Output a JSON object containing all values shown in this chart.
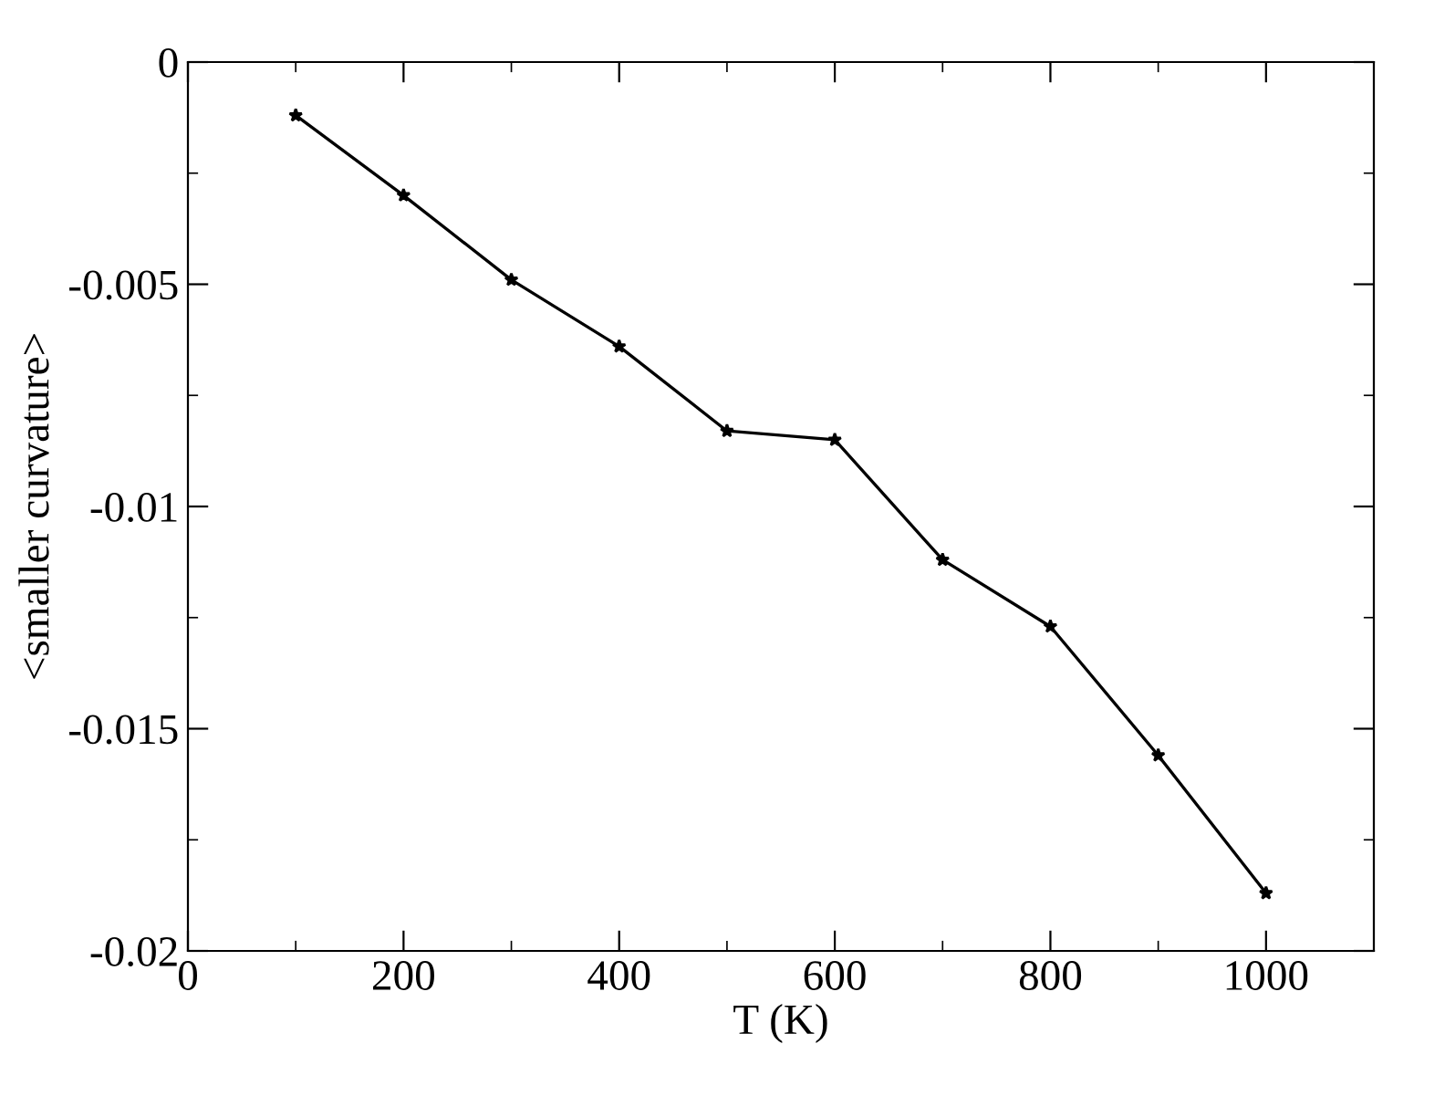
{
  "chart_data": {
    "type": "line",
    "xlabel": "T (K)",
    "ylabel": "<smaller curvature>",
    "x": [
      100,
      200,
      300,
      400,
      500,
      600,
      700,
      800,
      900,
      1000
    ],
    "series": [
      {
        "color": "#000000",
        "values": [
          -0.0012,
          -0.003,
          -0.0049,
          -0.0064,
          -0.0083,
          -0.0085,
          -0.0112,
          -0.0127,
          -0.0156,
          -0.0187
        ]
      }
    ],
    "xlim": [
      0,
      1100
    ],
    "xticks": [
      0,
      200,
      400,
      600,
      800,
      1000
    ],
    "ylim": [
      -0.02,
      0
    ],
    "yticks": [
      -0.02,
      -0.015,
      -0.01,
      -0.005,
      0
    ],
    "marker": "star",
    "line_style": "solid",
    "grid": false,
    "legend": false
  }
}
